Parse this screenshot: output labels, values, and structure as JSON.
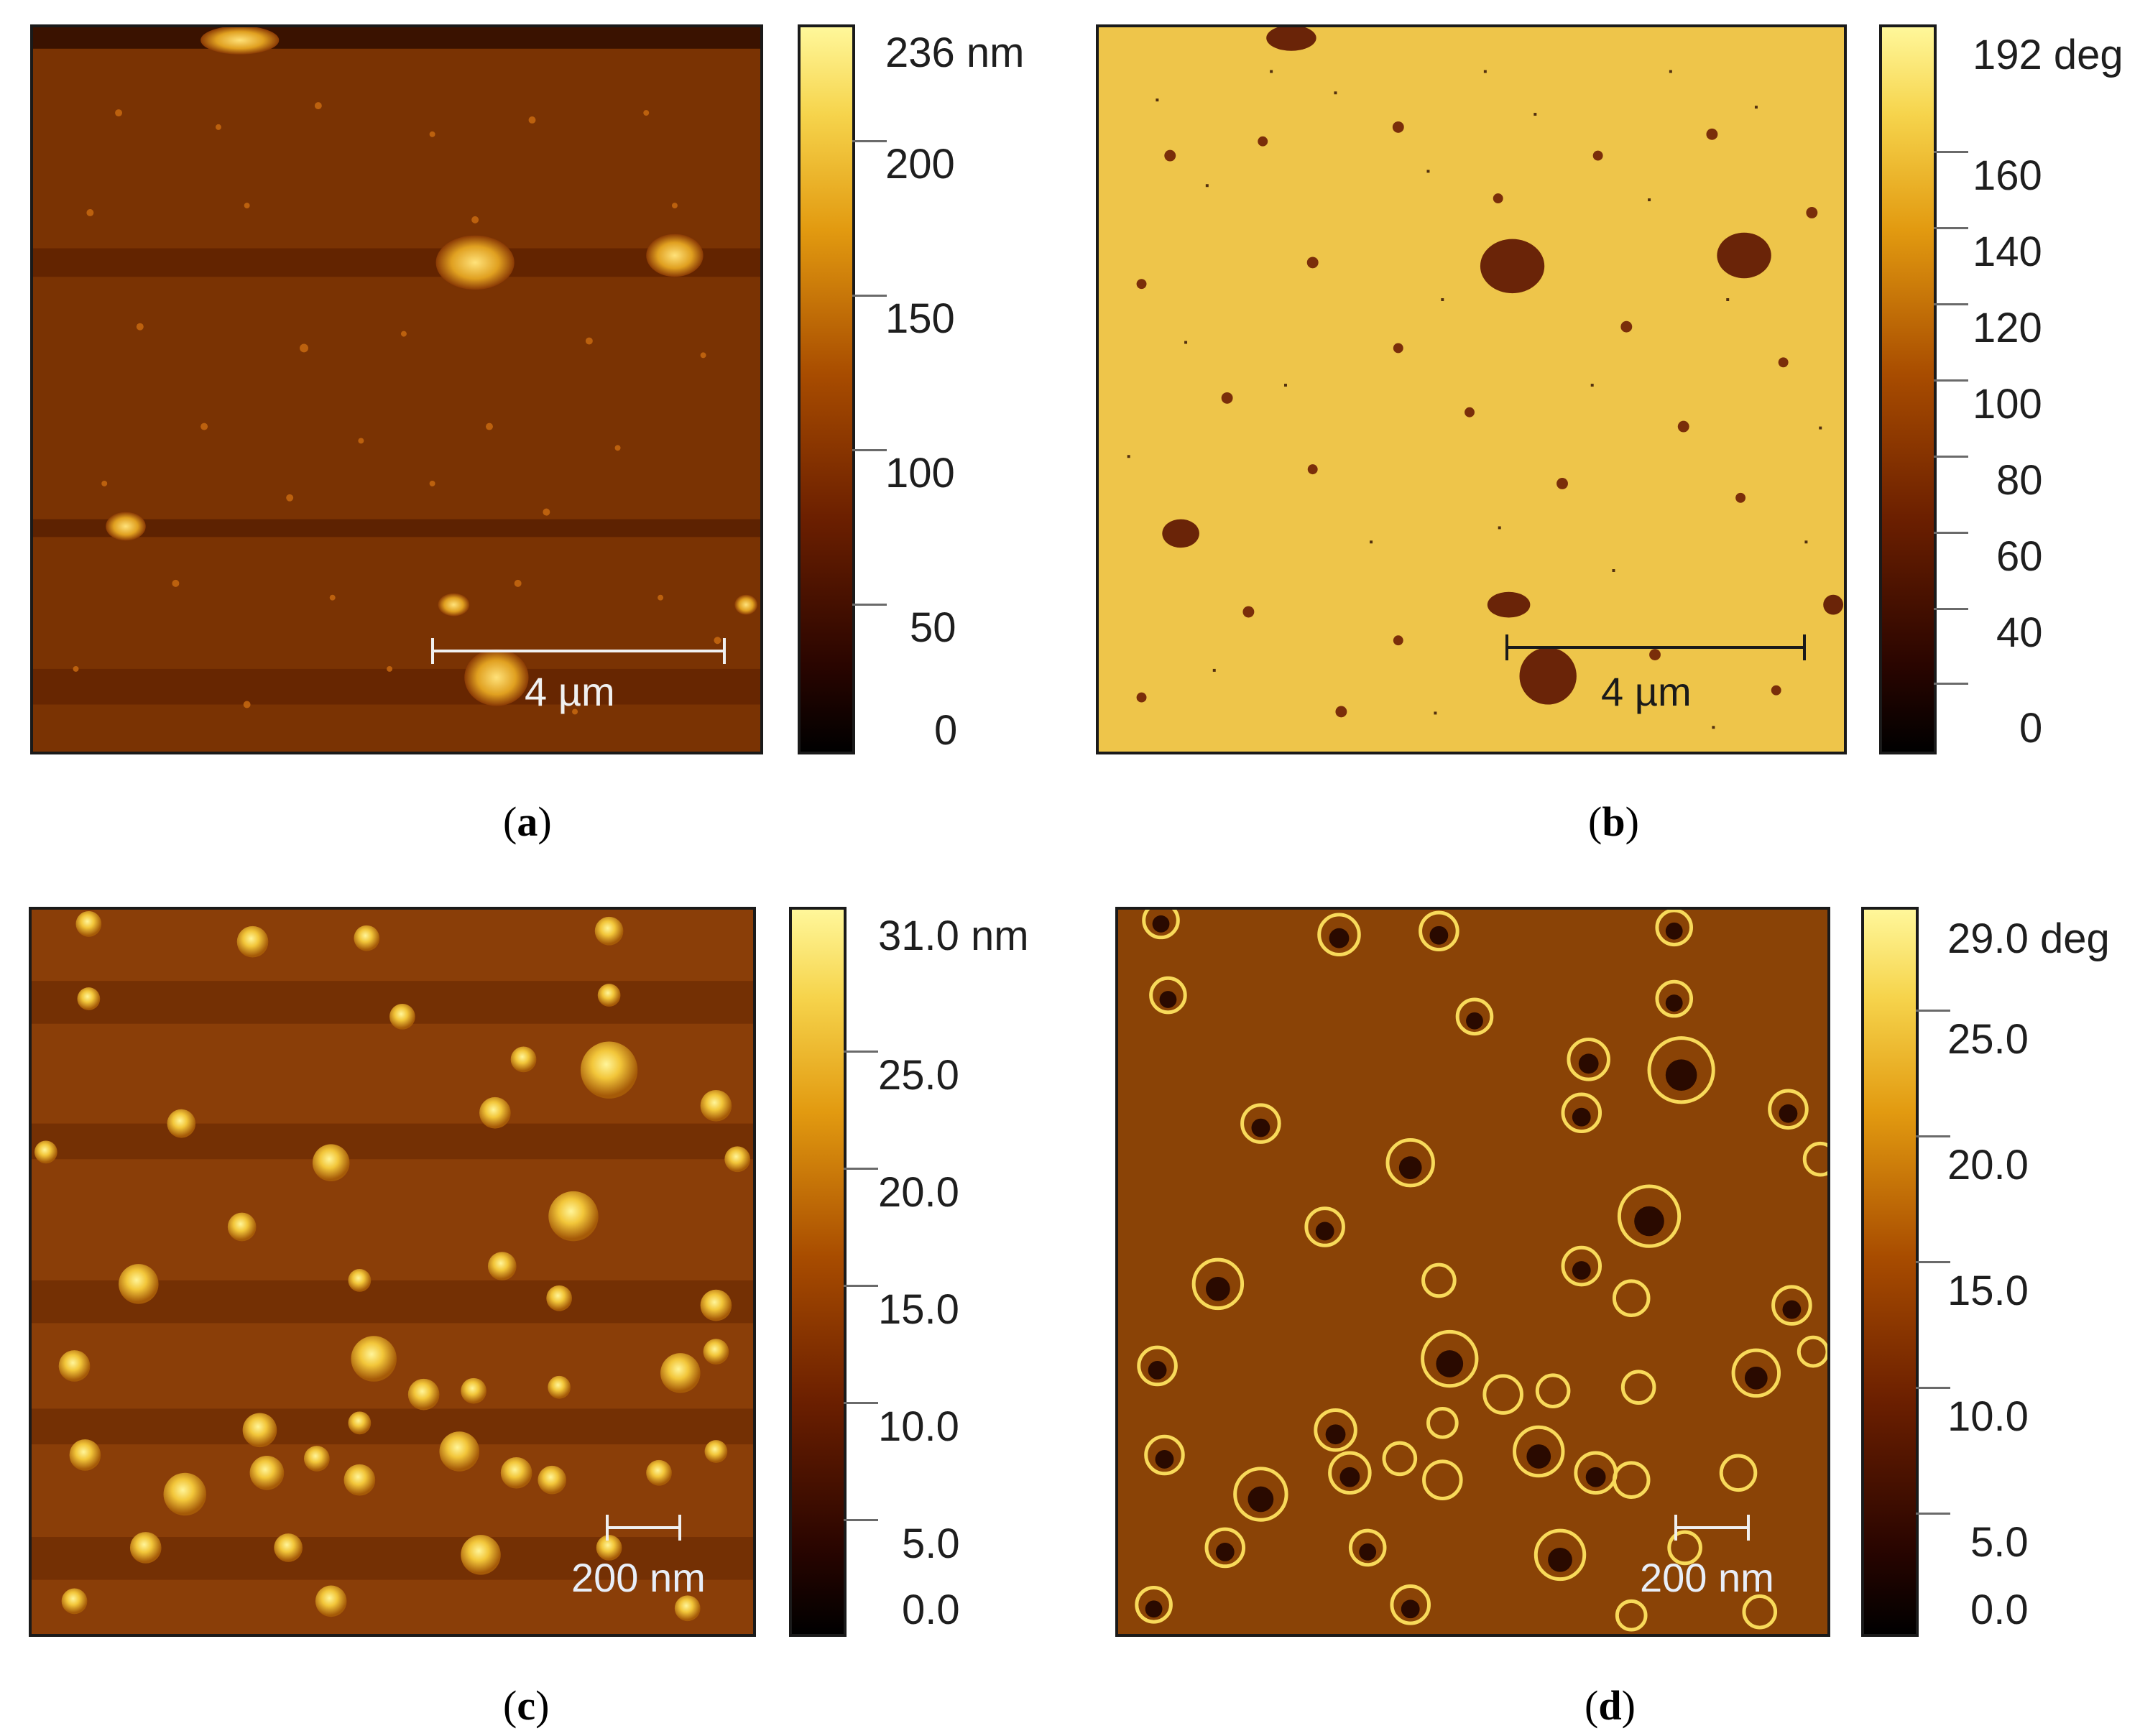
{
  "panels": {
    "a": {
      "caption": "a",
      "scale_label": "4 µm",
      "colorbar_labels": [
        "236 nm",
        "200",
        "150",
        "100",
        "50",
        "0"
      ]
    },
    "b": {
      "caption": "b",
      "scale_label": "4 µm",
      "colorbar_labels": [
        "192 deg",
        "160",
        "140",
        "120",
        "100",
        "80",
        "60",
        "40",
        "0"
      ]
    },
    "c": {
      "caption": "c",
      "scale_label": "200 nm",
      "colorbar_labels": [
        "31.0 nm",
        "25.0",
        "20.0",
        "15.0",
        "10.0",
        "5.0",
        "0.0"
      ]
    },
    "d": {
      "caption": "d",
      "scale_label": "200 nm",
      "colorbar_labels": [
        "29.0 deg",
        "25.0",
        "20.0",
        "15.0",
        "10.0",
        "5.0",
        "0.0"
      ]
    }
  },
  "colors": {
    "topo_background": "#7a3303",
    "phase_b_background": "#eec54a",
    "phase_d_background": "#8a4306",
    "feature_bright": "#f2c63a",
    "feature_dark": "#7a2a06",
    "colorbar_low": "#000000",
    "colorbar_high": "#fff79a"
  }
}
